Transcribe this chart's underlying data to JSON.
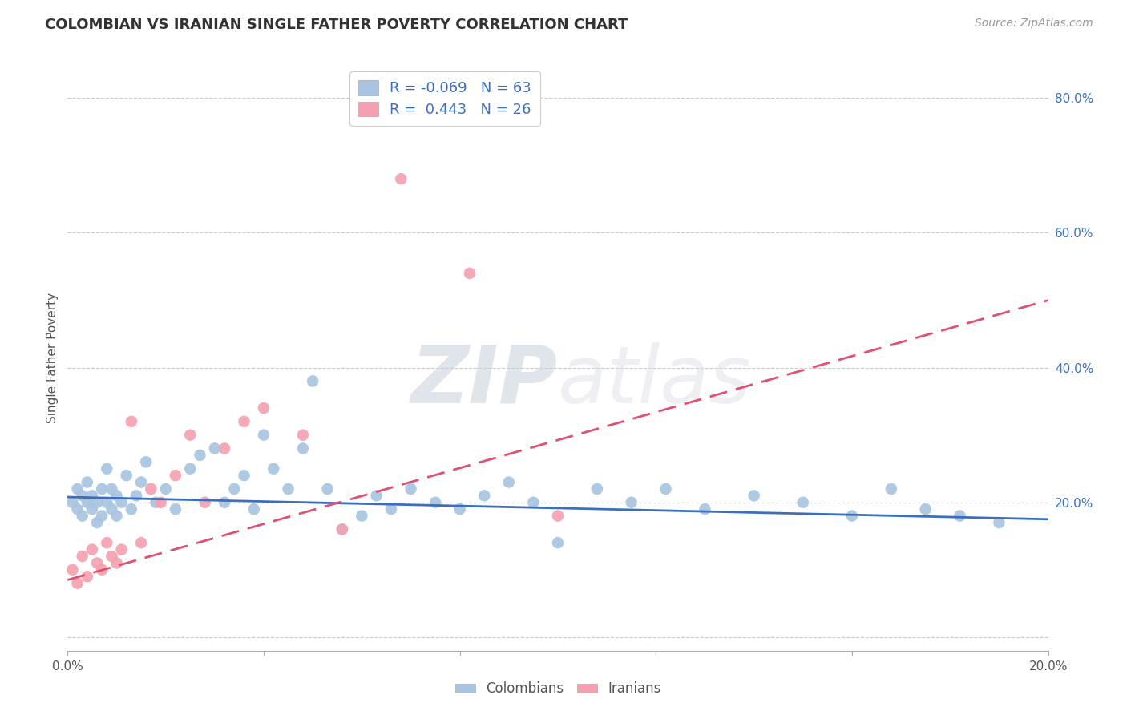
{
  "title": "COLOMBIAN VS IRANIAN SINGLE FATHER POVERTY CORRELATION CHART",
  "source": "Source: ZipAtlas.com",
  "ylabel": "Single Father Poverty",
  "xlim": [
    0.0,
    0.2
  ],
  "ylim": [
    -0.02,
    0.85
  ],
  "colombian_R": -0.069,
  "colombian_N": 63,
  "iranian_R": 0.443,
  "iranian_N": 26,
  "colombian_color": "#a8c4e0",
  "iranian_color": "#f4a0b0",
  "colombian_line_color": "#3a6fbf",
  "iranian_line_color": "#e05070",
  "watermark_zip": "ZIP",
  "watermark_atlas": "atlas",
  "colombian_x": [
    0.001,
    0.002,
    0.002,
    0.003,
    0.003,
    0.004,
    0.004,
    0.005,
    0.005,
    0.006,
    0.006,
    0.007,
    0.007,
    0.008,
    0.008,
    0.009,
    0.009,
    0.01,
    0.01,
    0.011,
    0.012,
    0.013,
    0.014,
    0.015,
    0.016,
    0.018,
    0.02,
    0.022,
    0.025,
    0.027,
    0.03,
    0.032,
    0.034,
    0.036,
    0.038,
    0.04,
    0.042,
    0.045,
    0.048,
    0.05,
    0.053,
    0.056,
    0.06,
    0.063,
    0.066,
    0.07,
    0.075,
    0.08,
    0.085,
    0.09,
    0.095,
    0.1,
    0.108,
    0.115,
    0.122,
    0.13,
    0.14,
    0.15,
    0.16,
    0.168,
    0.175,
    0.182,
    0.19
  ],
  "colombian_y": [
    0.2,
    0.22,
    0.19,
    0.21,
    0.18,
    0.2,
    0.23,
    0.19,
    0.21,
    0.17,
    0.2,
    0.22,
    0.18,
    0.25,
    0.2,
    0.22,
    0.19,
    0.21,
    0.18,
    0.2,
    0.24,
    0.19,
    0.21,
    0.23,
    0.26,
    0.2,
    0.22,
    0.19,
    0.25,
    0.27,
    0.28,
    0.2,
    0.22,
    0.24,
    0.19,
    0.3,
    0.25,
    0.22,
    0.28,
    0.38,
    0.22,
    0.16,
    0.18,
    0.21,
    0.19,
    0.22,
    0.2,
    0.19,
    0.21,
    0.23,
    0.2,
    0.14,
    0.22,
    0.2,
    0.22,
    0.19,
    0.21,
    0.2,
    0.18,
    0.22,
    0.19,
    0.18,
    0.17
  ],
  "iranian_x": [
    0.001,
    0.002,
    0.003,
    0.004,
    0.005,
    0.006,
    0.007,
    0.008,
    0.009,
    0.01,
    0.011,
    0.013,
    0.015,
    0.017,
    0.019,
    0.022,
    0.025,
    0.028,
    0.032,
    0.036,
    0.04,
    0.048,
    0.056,
    0.068,
    0.082,
    0.1
  ],
  "iranian_y": [
    0.1,
    0.08,
    0.12,
    0.09,
    0.13,
    0.11,
    0.1,
    0.14,
    0.12,
    0.11,
    0.13,
    0.32,
    0.14,
    0.22,
    0.2,
    0.24,
    0.3,
    0.2,
    0.28,
    0.32,
    0.34,
    0.3,
    0.16,
    0.68,
    0.54,
    0.18
  ],
  "col_line_x": [
    0.0,
    0.2
  ],
  "col_line_y": [
    0.208,
    0.175
  ],
  "ira_line_x": [
    0.0,
    0.2
  ],
  "ira_line_y": [
    0.085,
    0.5
  ]
}
